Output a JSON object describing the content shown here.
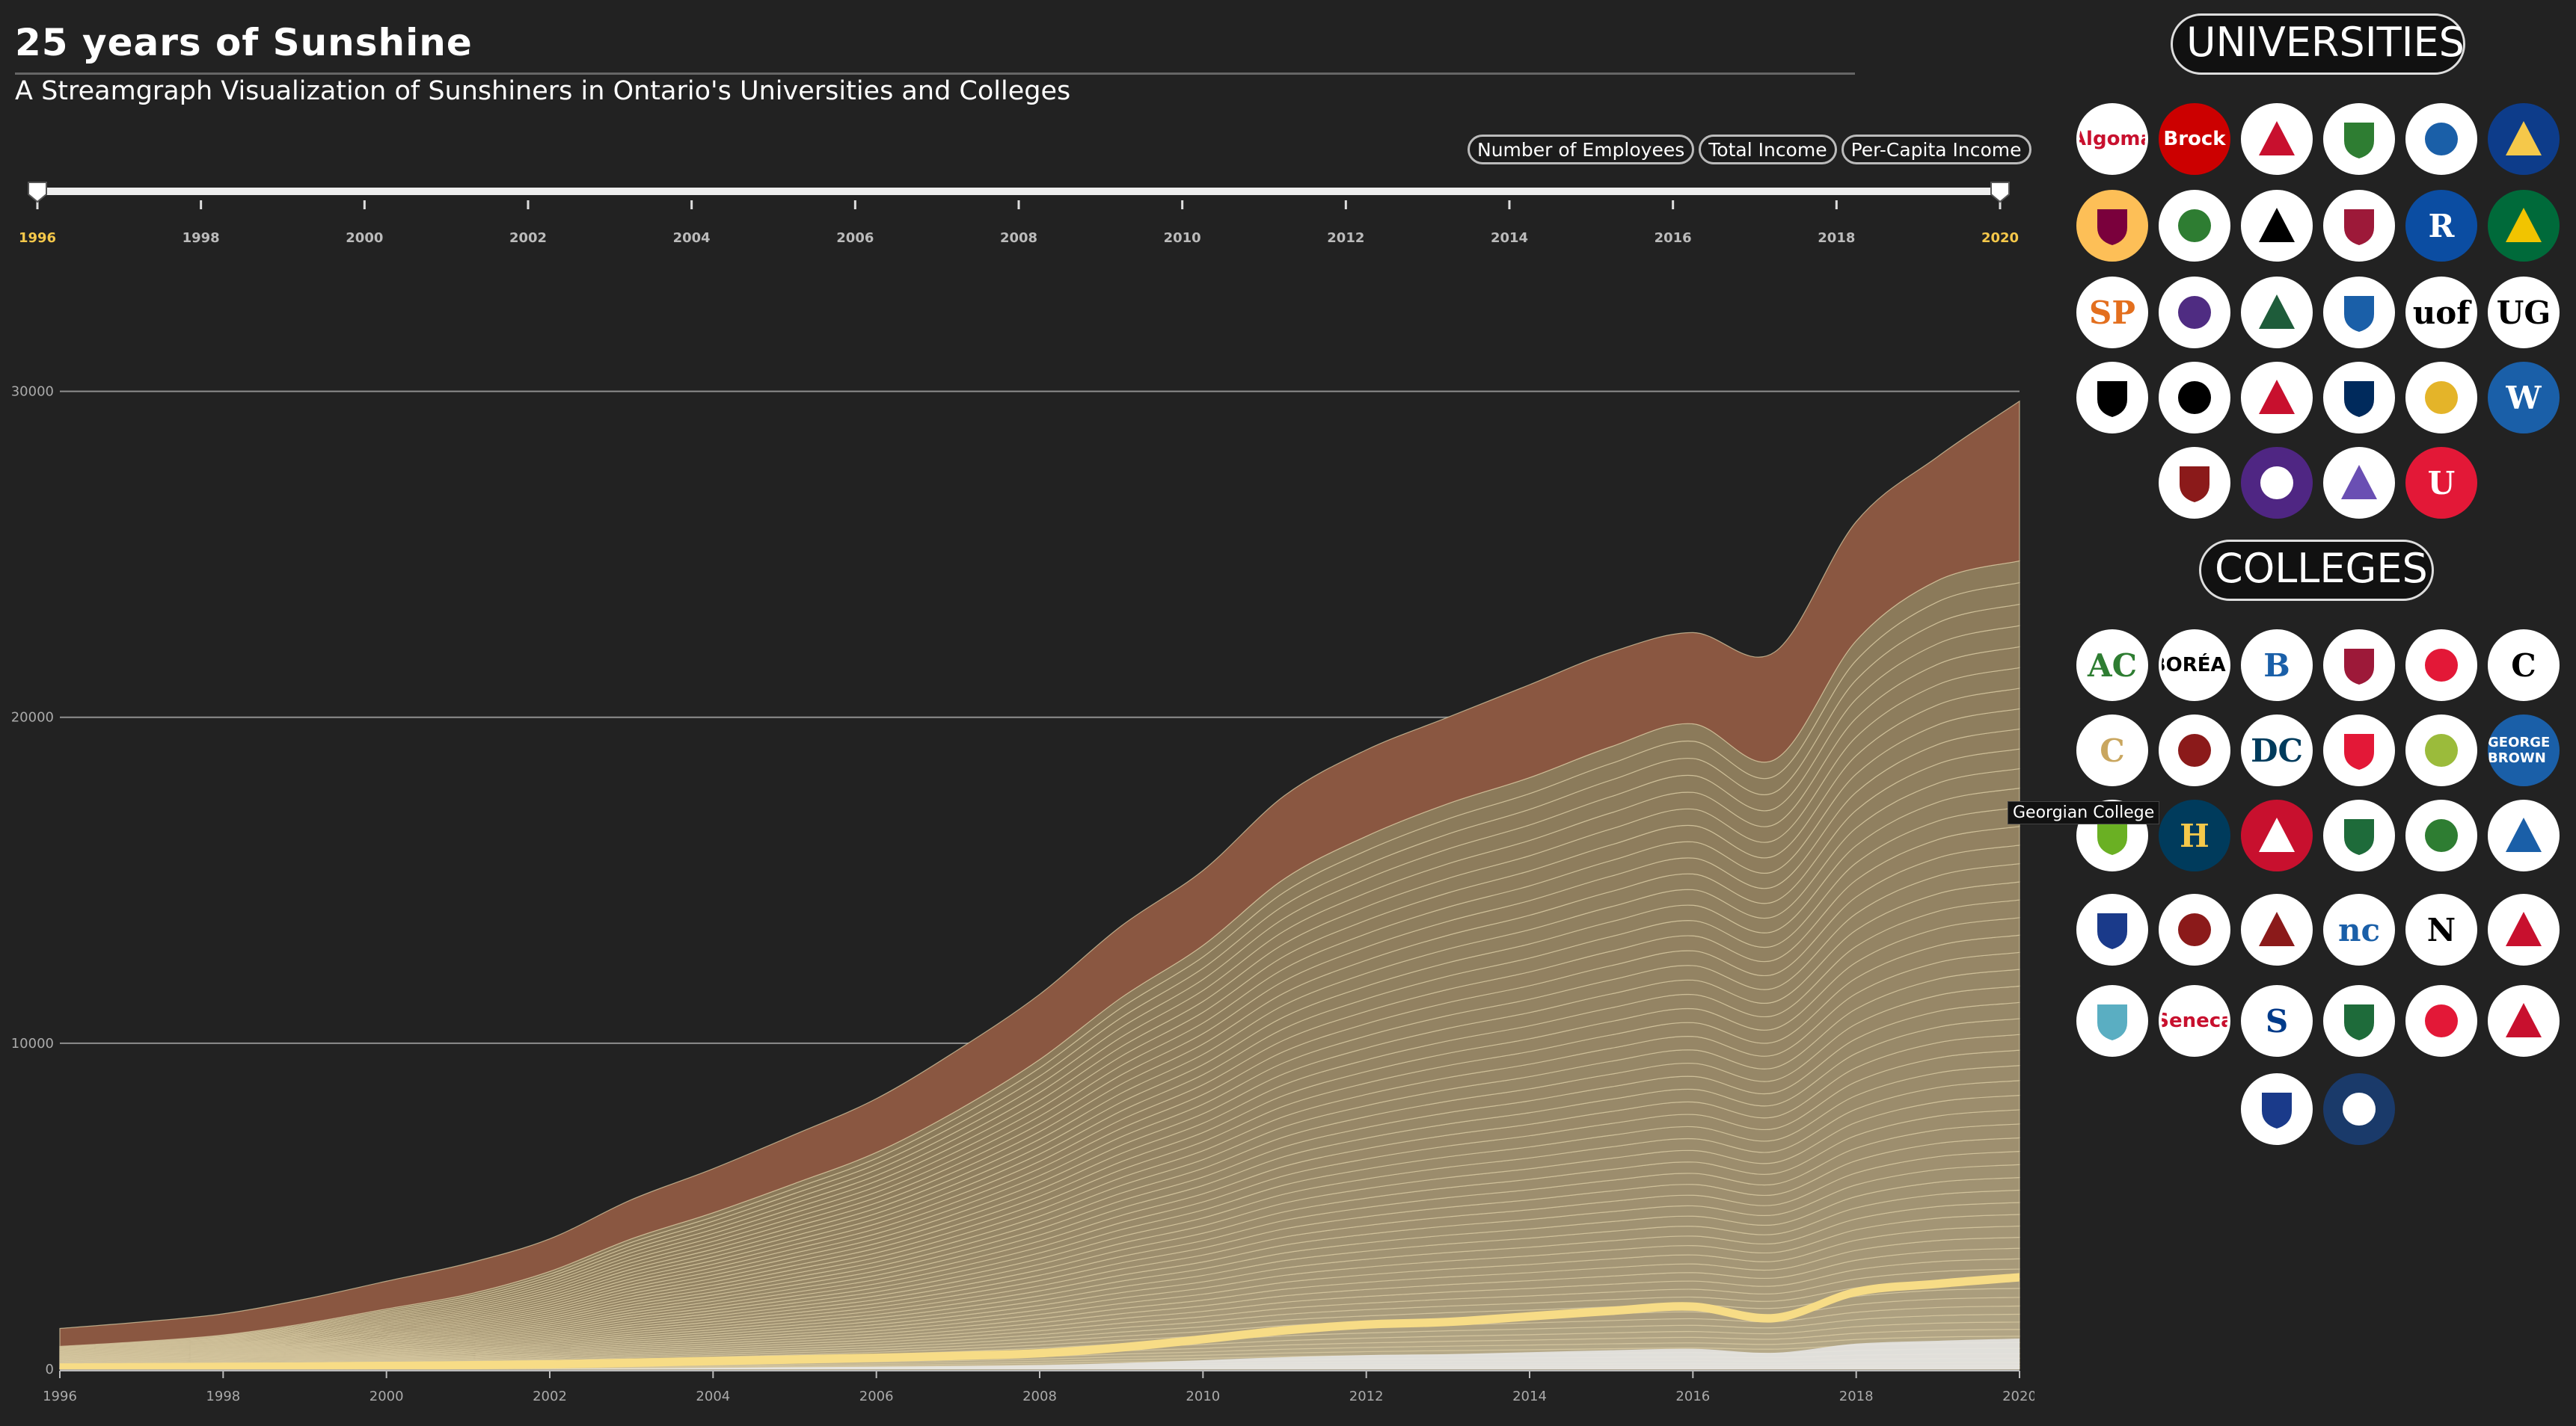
{
  "header": {
    "title": "25 years of Sunshine",
    "subtitle": "A Streamgraph Visualization of Sunshiners in Ontario's Universities and Colleges"
  },
  "metric_buttons": [
    "Number of Employees",
    "Total Income",
    "Per-Capita Income"
  ],
  "slider": {
    "ticks": [
      "1996",
      "1998",
      "2000",
      "2002",
      "2004",
      "2006",
      "2008",
      "2010",
      "2012",
      "2014",
      "2016",
      "2018",
      "2020"
    ],
    "start": "1996",
    "end": "2020",
    "highlight_color": "#f5c84a"
  },
  "sections": {
    "universities_label": "UNIVERSITIES",
    "colleges_label": "COLLEGES"
  },
  "tooltip": "Georgian College",
  "universities": [
    {
      "icon": "algoma-logo",
      "text": "Algoma",
      "fg": "#c8102e",
      "bg": "#fff"
    },
    {
      "icon": "brock-logo",
      "text": "Brock",
      "fg": "#fff",
      "bg": "#cc0000"
    },
    {
      "icon": "carleton-logo",
      "text": "",
      "fg": "#c8102e",
      "bg": "#fff"
    },
    {
      "icon": "huntington-logo",
      "text": "",
      "fg": "#2e7d32",
      "bg": "#fff"
    },
    {
      "icon": "lakehead-logo",
      "text": "",
      "fg": "#1a5fa8",
      "bg": "#fff"
    },
    {
      "icon": "laurentian-logo",
      "text": "",
      "fg": "#f5c84a",
      "bg": "#0d3c8a"
    },
    {
      "icon": "mcmaster-logo",
      "text": "",
      "fg": "#7a003c",
      "bg": "#fdbf57"
    },
    {
      "icon": "nipissing-logo",
      "text": "",
      "fg": "#2e7d32",
      "bg": "#fff"
    },
    {
      "icon": "ocad-logo",
      "text": "",
      "fg": "#000",
      "bg": "#fff"
    },
    {
      "icon": "queens-logo",
      "text": "",
      "fg": "#9d1939",
      "bg": "#fff"
    },
    {
      "icon": "ryerson-logo",
      "text": "R",
      "fg": "#fff",
      "bg": "#0b4da2"
    },
    {
      "icon": "saskatchewan-logo",
      "text": "",
      "fg": "#f1c400",
      "bg": "#006a3a"
    },
    {
      "icon": "saint-paul-logo",
      "text": "SP",
      "fg": "#e36f1e",
      "bg": "#fff"
    },
    {
      "icon": "laurier-logo",
      "text": "",
      "fg": "#4f2c82",
      "bg": "#fff"
    },
    {
      "icon": "trent-logo",
      "text": "",
      "fg": "#1e5c3a",
      "bg": "#fff"
    },
    {
      "icon": "uoit-logo",
      "text": "",
      "fg": "#1a5fa8",
      "bg": "#fff"
    },
    {
      "icon": "uof-logo",
      "text": "uof",
      "fg": "#000",
      "bg": "#fff"
    },
    {
      "icon": "guelph-logo",
      "text": "UG",
      "fg": "#000",
      "bg": "#fff"
    },
    {
      "icon": "building-logo",
      "text": "",
      "fg": "#000",
      "bg": "#fff"
    },
    {
      "icon": "pillars-logo",
      "text": "",
      "fg": "#000",
      "bg": "#fff"
    },
    {
      "icon": "flame-logo",
      "text": "",
      "fg": "#c8102e",
      "bg": "#fff"
    },
    {
      "icon": "toronto-logo",
      "text": "",
      "fg": "#002a5c",
      "bg": "#fff"
    },
    {
      "icon": "waterloo-logo",
      "text": "",
      "fg": "#e4b429",
      "bg": "#fff"
    },
    {
      "icon": "windsor-logo",
      "text": "W",
      "fg": "#fff",
      "bg": "#1a5fa8"
    },
    {
      "icon": "trinity-logo",
      "text": "",
      "fg": "#8b1a1a",
      "bg": "#fff"
    },
    {
      "icon": "western-logo",
      "text": "",
      "fg": "#fff",
      "bg": "#4f2683"
    },
    {
      "icon": "maple-leaf-logo",
      "text": "",
      "fg": "#6a4fb3",
      "bg": "#fff"
    },
    {
      "icon": "york-logo",
      "text": "U",
      "fg": "#fff",
      "bg": "#e31837"
    }
  ],
  "colleges": [
    {
      "icon": "algonquin-logo",
      "text": "AC",
      "fg": "#2e7d32",
      "bg": "#fff"
    },
    {
      "icon": "boreal-logo",
      "text": "BORÉAL",
      "fg": "#000",
      "bg": "#fff"
    },
    {
      "icon": "cambrian-logo",
      "text": "B",
      "fg": "#1a5fa8",
      "bg": "#fff"
    },
    {
      "icon": "canadore-logo",
      "text": "",
      "fg": "#9d1939",
      "bg": "#fff"
    },
    {
      "icon": "centennial-logo",
      "text": "",
      "fg": "#e31837",
      "bg": "#fff"
    },
    {
      "icon": "conestoga-logo",
      "text": "C",
      "fg": "#000",
      "bg": "#fff"
    },
    {
      "icon": "confederation-logo",
      "text": "C",
      "fg": "#c9a65f",
      "bg": "#fff"
    },
    {
      "icon": "durham-tribal-logo",
      "text": "",
      "fg": "#8b1a1a",
      "bg": "#fff"
    },
    {
      "icon": "durham-logo",
      "text": "DC",
      "fg": "#003b5c",
      "bg": "#fff"
    },
    {
      "icon": "fanshawe-logo",
      "text": "",
      "fg": "#e31837",
      "bg": "#fff"
    },
    {
      "icon": "fleming-logo",
      "text": "",
      "fg": "#9bbb3b",
      "bg": "#fff"
    },
    {
      "icon": "george-brown-logo",
      "text": "GEORGE BROWN",
      "fg": "#fff",
      "bg": "#1a5fa8"
    },
    {
      "icon": "georgian-logo",
      "text": "",
      "fg": "#6ab023",
      "bg": "#fff"
    },
    {
      "icon": "humber-logo",
      "text": "H",
      "fg": "#f5c84a",
      "bg": "#003b5c"
    },
    {
      "icon": "lambton-logo",
      "text": "",
      "fg": "#fff",
      "bg": "#c8102e"
    },
    {
      "icon": "la-cite-logo",
      "text": "",
      "fg": "#1e6b3a",
      "bg": "#fff"
    },
    {
      "icon": "loyalist-logo",
      "text": "",
      "fg": "#2e7d32",
      "bg": "#fff"
    },
    {
      "icon": "mohawk-logo",
      "text": "",
      "fg": "#1a5fa8",
      "bg": "#fff"
    },
    {
      "icon": "union-jack-logo",
      "text": "",
      "fg": "#1a3a8a",
      "bg": "#fff"
    },
    {
      "icon": "crest-logo",
      "text": "",
      "fg": "#8b1a1a",
      "bg": "#fff"
    },
    {
      "icon": "niagara-bars-logo",
      "text": "",
      "fg": "#8b1a1a",
      "bg": "#fff"
    },
    {
      "icon": "northern-logo",
      "text": "nc",
      "fg": "#1a5fa8",
      "bg": "#fff"
    },
    {
      "icon": "n-logo",
      "text": "N",
      "fg": "#000",
      "bg": "#fff"
    },
    {
      "icon": "shield-crest-logo",
      "text": "",
      "fg": "#c8102e",
      "bg": "#fff"
    },
    {
      "icon": "sault-logo",
      "text": "",
      "fg": "#5aaec2",
      "bg": "#fff"
    },
    {
      "icon": "seneca-logo",
      "text": "Seneca",
      "fg": "#c8102e",
      "bg": "#fff"
    },
    {
      "icon": "sheridan-logo",
      "text": "S",
      "fg": "#003b8a",
      "bg": "#fff"
    },
    {
      "icon": "st-clair-logo",
      "text": "",
      "fg": "#1e6b3a",
      "bg": "#fff"
    },
    {
      "icon": "st-lawrence-logo",
      "text": "",
      "fg": "#e31837",
      "bg": "#fff"
    },
    {
      "icon": "college-crest-logo",
      "text": "",
      "fg": "#c8102e",
      "bg": "#fff"
    },
    {
      "icon": "blue-crest-logo",
      "text": "",
      "fg": "#1a3a8a",
      "bg": "#fff"
    },
    {
      "icon": "navy-crest-logo",
      "text": "",
      "fg": "#fff",
      "bg": "#1a3a6a"
    }
  ],
  "chart_data": {
    "type": "area",
    "title": "",
    "xlabel": "",
    "ylabel": "",
    "x": [
      1996,
      1997,
      1998,
      1999,
      2000,
      2001,
      2002,
      2003,
      2004,
      2005,
      2006,
      2007,
      2008,
      2009,
      2010,
      2011,
      2012,
      2013,
      2014,
      2015,
      2016,
      2017,
      2018,
      2019,
      2020
    ],
    "x_ticks": [
      "1996",
      "1998",
      "2000",
      "2002",
      "2004",
      "2006",
      "2008",
      "2010",
      "2012",
      "2014",
      "2016",
      "2018",
      "2020"
    ],
    "y_ticks": [
      "0",
      "10000",
      "20000",
      "30000"
    ],
    "ylim": [
      0,
      31000
    ],
    "grid": true,
    "series_count": 60,
    "total": [
      1250,
      1450,
      1700,
      2150,
      2700,
      3250,
      4000,
      5200,
      6150,
      7200,
      8300,
      9800,
      11500,
      13600,
      15300,
      17600,
      19000,
      20000,
      21000,
      22000,
      22600,
      22000,
      26000,
      28000,
      29700
    ],
    "top_series_values": [
      550,
      600,
      650,
      750,
      850,
      950,
      1000,
      1200,
      1350,
      1500,
      1650,
      1850,
      2000,
      2200,
      2300,
      2550,
      2650,
      2650,
      2850,
      2900,
      2800,
      3300,
      3650,
      3800,
      4900
    ],
    "highlight_series_cumulative": [
      180,
      190,
      200,
      210,
      230,
      250,
      280,
      330,
      380,
      430,
      480,
      540,
      620,
      800,
      1050,
      1320,
      1500,
      1580,
      1750,
      1920,
      2050,
      1700,
      2500,
      2750,
      2950
    ],
    "colors": {
      "top_series": "#8a5741",
      "stream_base": "#8b7a5a",
      "stream_light": "#d8d0b0",
      "highlight": "#f7dc86",
      "line": "#d8c9a2"
    }
  }
}
